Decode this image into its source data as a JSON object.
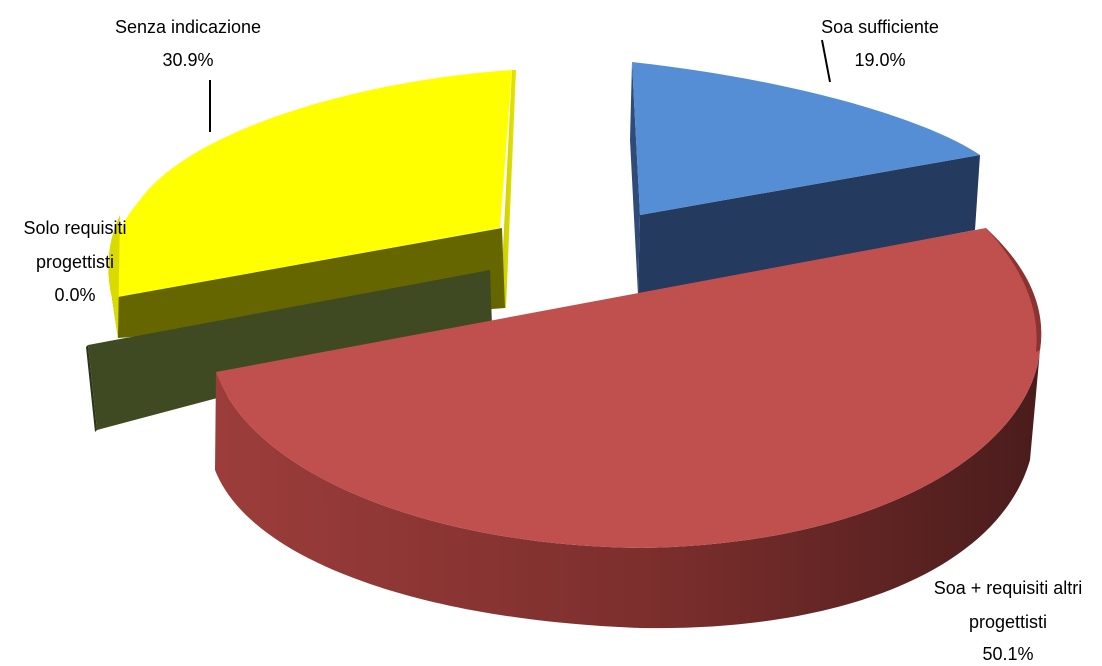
{
  "chart_data": {
    "type": "pie",
    "style": "3d-exploded",
    "title": "",
    "slices": [
      {
        "label_lines": [
          "Soa sufficiente"
        ],
        "value_text": "19.0%",
        "value": 19.0,
        "color": "#558ED5"
      },
      {
        "label_lines": [
          "Soa + requisiti altri",
          "progettisti"
        ],
        "value_text": "50.1%",
        "value": 50.1,
        "color": "#C0504D"
      },
      {
        "label_lines": [
          "Solo requisiti",
          "progettisti"
        ],
        "value_text": "0.0%",
        "value": 0.0,
        "color": "#3F4A23"
      },
      {
        "label_lines": [
          "Senza indicazione"
        ],
        "value_text": "30.9%",
        "value": 30.9,
        "color": "#FFFF00"
      }
    ]
  }
}
